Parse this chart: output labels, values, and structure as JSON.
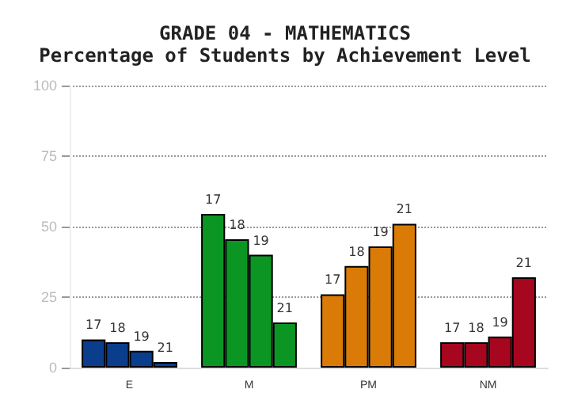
{
  "chart_data": {
    "type": "bar",
    "title": "GRADE 04 - MATHEMATICS",
    "subtitle": "Percentage of Students by Achievement Level",
    "categories": [
      "E",
      "M",
      "PM",
      "NM"
    ],
    "series": [
      {
        "name": "17",
        "colors": [
          "#0a3d8c",
          "#0b9624",
          "#d97b06",
          "#a6061e"
        ],
        "values": [
          10,
          54.5,
          26,
          9
        ]
      },
      {
        "name": "18",
        "colors": [
          "#0a3d8c",
          "#0b9624",
          "#d97b06",
          "#a6061e"
        ],
        "values": [
          9,
          45.5,
          36,
          9
        ]
      },
      {
        "name": "19",
        "colors": [
          "#0a3d8c",
          "#0b9624",
          "#d97b06",
          "#a6061e"
        ],
        "values": [
          6,
          40,
          43,
          11
        ]
      },
      {
        "name": "21",
        "colors": [
          "#0a3d8c",
          "#0b9624",
          "#d97b06",
          "#a6061e"
        ],
        "values": [
          2,
          16,
          51,
          32
        ]
      }
    ],
    "ylim": [
      0,
      100
    ],
    "yticks": [
      0,
      25,
      50,
      75,
      100
    ],
    "grid": "y",
    "legend": false
  }
}
